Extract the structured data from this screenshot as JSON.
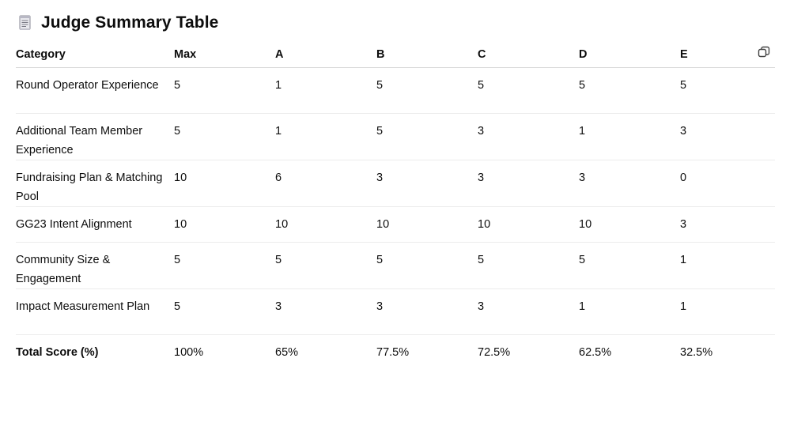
{
  "header": {
    "title": "Judge Summary Table",
    "icon": "document-icon"
  },
  "table": {
    "columns": [
      "Category",
      "Max",
      "A",
      "B",
      "C",
      "D",
      "E"
    ],
    "rows": [
      {
        "category": "Round Operator Experience",
        "values": [
          "5",
          "1",
          "5",
          "5",
          "5",
          "5"
        ]
      },
      {
        "category": "Additional Team Member Experience",
        "values": [
          "5",
          "1",
          "5",
          "3",
          "1",
          "3"
        ]
      },
      {
        "category": "Fundraising Plan & Matching Pool",
        "values": [
          "10",
          "6",
          "3",
          "3",
          "3",
          "0"
        ]
      },
      {
        "category": "GG23 Intent Alignment",
        "values": [
          "10",
          "10",
          "10",
          "10",
          "10",
          "3"
        ]
      },
      {
        "category": "Community Size & Engagement",
        "values": [
          "5",
          "5",
          "5",
          "5",
          "5",
          "1"
        ]
      },
      {
        "category": "Impact Measurement Plan",
        "values": [
          "5",
          "3",
          "3",
          "3",
          "1",
          "1"
        ]
      }
    ],
    "total": {
      "category": "Total Score (%)",
      "values": [
        "100%",
        "65%",
        "77.5%",
        "72.5%",
        "62.5%",
        "32.5%"
      ]
    }
  },
  "toolbar": {
    "copy_icon": "copy-icon"
  }
}
